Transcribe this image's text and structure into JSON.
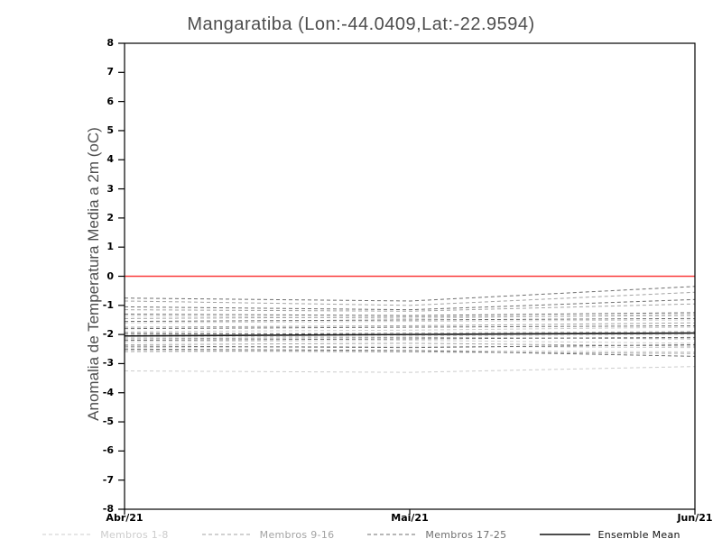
{
  "window": {
    "background": "#ffffff"
  },
  "chart_data": {
    "type": "line",
    "title": "Mangaratiba (Lon:-44.0409,Lat:-22.9594)",
    "ylabel": "Anomalia de Temperatura Media a 2m (oC)",
    "xlabel": "",
    "x_tick_labels": [
      "Abr/21",
      "Mai/21",
      "Jun/21"
    ],
    "y_ticks": [
      8,
      7,
      6,
      5,
      4,
      3,
      2,
      1,
      0,
      -1,
      -2,
      -3,
      -4,
      -5,
      -6,
      -7,
      -8
    ],
    "ylim": [
      -8,
      8
    ],
    "grid": false,
    "legend_position": "bottom",
    "frame": true,
    "zero_line": {
      "value": 0,
      "color": "#fa3c3c"
    },
    "groups": [
      {
        "label": "Membros 1-8",
        "color": "#cccccc",
        "style": "dashed",
        "members": [
          [
            -1.35,
            -1.45,
            -1.3
          ],
          [
            -1.6,
            -1.55,
            -1.5
          ],
          [
            -1.9,
            -1.85,
            -1.75
          ],
          [
            -2.1,
            -2.05,
            -2.0
          ],
          [
            -2.25,
            -2.2,
            -2.3
          ],
          [
            -2.45,
            -2.4,
            -2.45
          ],
          [
            -2.6,
            -2.55,
            -2.6
          ],
          [
            -3.25,
            -3.3,
            -3.1
          ]
        ]
      },
      {
        "label": "Membros 9-16",
        "color": "#a3a3a3",
        "style": "dashed",
        "members": [
          [
            -0.85,
            -1.0,
            -0.55
          ],
          [
            -1.15,
            -1.2,
            -0.95
          ],
          [
            -1.45,
            -1.4,
            -1.35
          ],
          [
            -1.75,
            -1.7,
            -1.6
          ],
          [
            -2.0,
            -1.95,
            -1.9
          ],
          [
            -2.15,
            -2.1,
            -2.15
          ],
          [
            -2.35,
            -2.3,
            -2.4
          ],
          [
            -2.55,
            -2.6,
            -2.65
          ]
        ]
      },
      {
        "label": "Membros 17-25",
        "color": "#6f6f6f",
        "style": "dashed",
        "members": [
          [
            -0.75,
            -0.85,
            -0.35
          ],
          [
            -1.05,
            -1.15,
            -0.8
          ],
          [
            -1.3,
            -1.35,
            -1.25
          ],
          [
            -1.55,
            -1.5,
            -1.45
          ],
          [
            -1.8,
            -1.75,
            -1.7
          ],
          [
            -1.95,
            -2.0,
            -1.95
          ],
          [
            -2.2,
            -2.15,
            -2.1
          ],
          [
            -2.4,
            -2.45,
            -2.35
          ],
          [
            -2.5,
            -2.55,
            -2.75
          ]
        ]
      }
    ],
    "ensemble_mean": {
      "label": "Ensemble Mean",
      "color": "#111111",
      "style": "solid",
      "values": [
        -2.05,
        -2.0,
        -1.95
      ]
    }
  }
}
